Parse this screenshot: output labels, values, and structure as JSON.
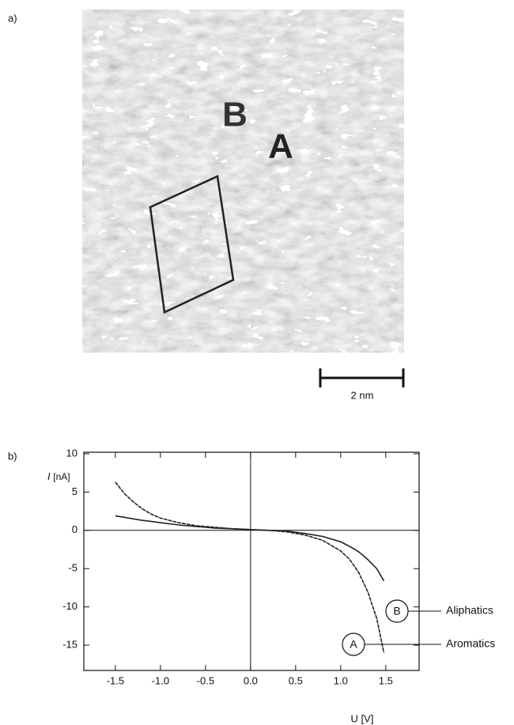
{
  "panel_a": {
    "label": "a)",
    "region_labels": [
      "B",
      "A"
    ],
    "scale_bar": "2 nm"
  },
  "panel_b": {
    "label": "b)"
  },
  "chart_data": {
    "type": "line",
    "y_label_symbol": "I",
    "y_label_unit": "[nA]",
    "x_label": "U [V]",
    "xlim": [
      -1.85,
      1.87
    ],
    "ylim": [
      -18.3,
      10.2
    ],
    "xticks": [
      -1.5,
      {
        "value": -1.0,
        "label": "-1.0"
      },
      -0.5,
      {
        "value": 0,
        "label": "0.0"
      },
      0.5,
      {
        "value": 1.0,
        "label": "1.0"
      },
      1.5
    ],
    "yticks": [
      10,
      5,
      0,
      -5,
      -10,
      -15
    ],
    "x": [
      -1.5,
      -1.4,
      -1.3,
      -1.2,
      -1.1,
      -1.0,
      -0.8,
      -0.6,
      -0.4,
      -0.2,
      0,
      0.2,
      0.4,
      0.6,
      0.8,
      1.0,
      1.1,
      1.2,
      1.3,
      1.4,
      1.48
    ],
    "series": [
      {
        "name": "Aromatics",
        "marker": "A",
        "color": "#222222",
        "values": [
          6.3,
          4.8,
          3.7,
          2.8,
          2.1,
          1.6,
          1.0,
          0.6,
          0.4,
          0.2,
          0.1,
          0,
          -0.2,
          -0.6,
          -1.3,
          -2.7,
          -3.8,
          -5.5,
          -8.0,
          -11.5,
          -16
        ]
      },
      {
        "name": "Aliphatics",
        "marker": "B",
        "color": "#222222",
        "values": [
          1.9,
          1.7,
          1.5,
          1.3,
          1.15,
          1.0,
          0.7,
          0.5,
          0.3,
          0.2,
          0.1,
          0,
          -0.1,
          -0.4,
          -0.8,
          -1.5,
          -2.1,
          -2.8,
          -3.8,
          -5.0,
          -6.6
        ]
      }
    ]
  }
}
